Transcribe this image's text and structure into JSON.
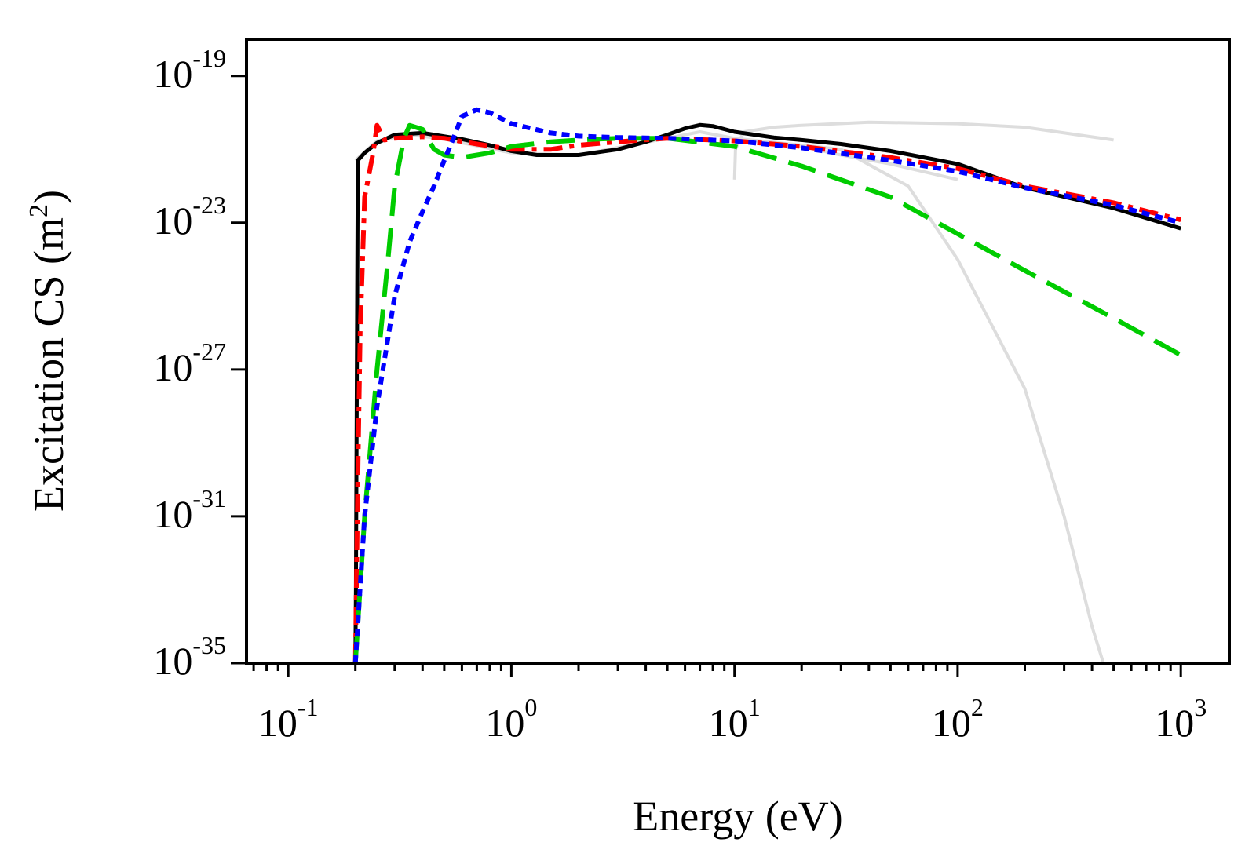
{
  "chart_data": {
    "type": "line",
    "title": "",
    "xlabel": "Energy (eV)",
    "ylabel": {
      "main": "Excitation CS (m",
      "sup": "2",
      "end": ")"
    },
    "xscale": "log",
    "yscale": "log",
    "xlim": [
      0.065,
      1650
    ],
    "ylim": [
      1e-35,
      1e-18
    ],
    "x_ticks": [
      {
        "value": 0.1,
        "base": "10",
        "exp": "-1"
      },
      {
        "value": 1,
        "base": "10",
        "exp": "0"
      },
      {
        "value": 10,
        "base": "10",
        "exp": "1"
      },
      {
        "value": 100,
        "base": "10",
        "exp": "2"
      },
      {
        "value": 1000,
        "base": "10",
        "exp": "3"
      }
    ],
    "y_ticks": [
      {
        "value": 1e-19,
        "base": "10",
        "exp": "-19"
      },
      {
        "value": 1e-23,
        "base": "10",
        "exp": "-23"
      },
      {
        "value": 1e-27,
        "base": "10",
        "exp": "-27"
      },
      {
        "value": 1e-31,
        "base": "10",
        "exp": "-31"
      },
      {
        "value": 1e-35,
        "base": "10",
        "exp": "-35"
      }
    ],
    "legend": "none",
    "grid": false,
    "series": [
      {
        "name": "reference-light-1",
        "color": "#dddddd",
        "width": 4,
        "dash": "",
        "x": [
          0.2,
          0.25,
          0.35,
          0.5,
          1,
          2,
          5,
          7,
          10,
          20,
          30,
          50,
          100
        ],
        "y": [
          5e-22,
          1.7e-21,
          2.5e-21,
          1.9e-21,
          8e-22,
          7e-22,
          2e-21,
          3e-21,
          2e-21,
          1.2e-21,
          7e-22,
          4e-22,
          1.5e-22
        ]
      },
      {
        "name": "reference-light-2",
        "color": "#dddddd",
        "width": 4,
        "dash": "",
        "x": [
          10,
          10.1,
          11,
          15,
          20,
          40,
          100,
          200,
          500
        ],
        "y": [
          1.5e-22,
          1e-21,
          3e-21,
          4e-21,
          4.5e-21,
          5.5e-21,
          5e-21,
          4e-21,
          1.8e-21
        ]
      },
      {
        "name": "reference-light-3",
        "color": "#dddddd",
        "width": 4,
        "dash": "",
        "x": [
          10,
          30,
          60,
          100,
          200,
          300,
          400,
          450
        ],
        "y": [
          2e-21,
          1e-21,
          1e-22,
          1e-24,
          3e-28,
          1e-31,
          1e-34,
          1e-35
        ]
      },
      {
        "name": "black-solid",
        "color": "#000000",
        "width": 5,
        "dash": "",
        "x": [
          0.2,
          0.201,
          0.205,
          0.22,
          0.25,
          0.3,
          0.4,
          0.6,
          0.8,
          1,
          1.3,
          2,
          3,
          4,
          5,
          6,
          7,
          8,
          10,
          15,
          20,
          30,
          50,
          100,
          200,
          500,
          1000
        ],
        "y": [
          1e-35,
          1e-33,
          5e-22,
          8e-22,
          1.5e-21,
          2.5e-21,
          2.8e-21,
          1.9e-21,
          1.3e-21,
          9e-22,
          7e-22,
          7e-22,
          1e-21,
          1.6e-21,
          2.5e-21,
          3.7e-21,
          4.6e-21,
          4.3e-21,
          3e-21,
          2.1e-21,
          1.8e-21,
          1.4e-21,
          9e-22,
          4e-22,
          9e-23,
          2.5e-23,
          7e-24
        ]
      },
      {
        "name": "red-dashdot",
        "color": "#ff0000",
        "width": 6,
        "dash": "24 9 6 9",
        "x": [
          0.2,
          0.205,
          0.21,
          0.22,
          0.24,
          0.25,
          0.27,
          0.3,
          0.4,
          0.5,
          0.7,
          1,
          1.5,
          2,
          3,
          5,
          10,
          20,
          50,
          100,
          200,
          500,
          1000
        ],
        "y": [
          1e-35,
          1e-30,
          1e-26,
          5e-23,
          8e-22,
          4.5e-21,
          1.8e-21,
          2e-21,
          2.2e-21,
          2e-21,
          1.4e-21,
          1e-21,
          1e-21,
          1.3e-21,
          1.6e-21,
          2e-21,
          1.7e-21,
          1.2e-21,
          6e-22,
          3e-22,
          1e-22,
          3.5e-23,
          1.2e-23
        ]
      },
      {
        "name": "green-dashed",
        "color": "#00cc00",
        "width": 6,
        "dash": "36 16",
        "x": [
          0.2,
          0.22,
          0.25,
          0.28,
          0.3,
          0.33,
          0.35,
          0.4,
          0.45,
          0.5,
          0.6,
          0.8,
          1,
          1.5,
          2,
          3,
          5,
          10,
          20,
          50,
          100,
          200,
          500,
          1000
        ],
        "y": [
          1e-35,
          1e-31,
          1e-27,
          1e-24,
          1e-22,
          2e-21,
          4.5e-21,
          3.5e-21,
          1e-21,
          7e-22,
          6e-22,
          8e-22,
          1.2e-21,
          1.6e-21,
          1.8e-21,
          2e-21,
          2e-21,
          1.2e-21,
          3.5e-22,
          5e-23,
          5e-24,
          5e-25,
          2.5e-26,
          2.5e-27
        ]
      },
      {
        "name": "blue-dotted",
        "color": "#0000ff",
        "width": 6,
        "dash": "10 7",
        "x": [
          0.2,
          0.22,
          0.25,
          0.3,
          0.35,
          0.4,
          0.45,
          0.5,
          0.55,
          0.6,
          0.7,
          0.8,
          1,
          1.5,
          2,
          3,
          5,
          10,
          20,
          50,
          100,
          200,
          500,
          1000
        ],
        "y": [
          1e-35,
          1e-31,
          1e-28,
          1e-25,
          3e-24,
          2e-23,
          1e-22,
          5e-22,
          2e-21,
          8e-21,
          1.2e-20,
          1e-20,
          5e-21,
          2.8e-21,
          2.3e-21,
          2.1e-21,
          2e-21,
          1.7e-21,
          1.1e-21,
          5e-22,
          2.5e-22,
          9e-23,
          3e-23,
          1e-23
        ]
      }
    ]
  }
}
